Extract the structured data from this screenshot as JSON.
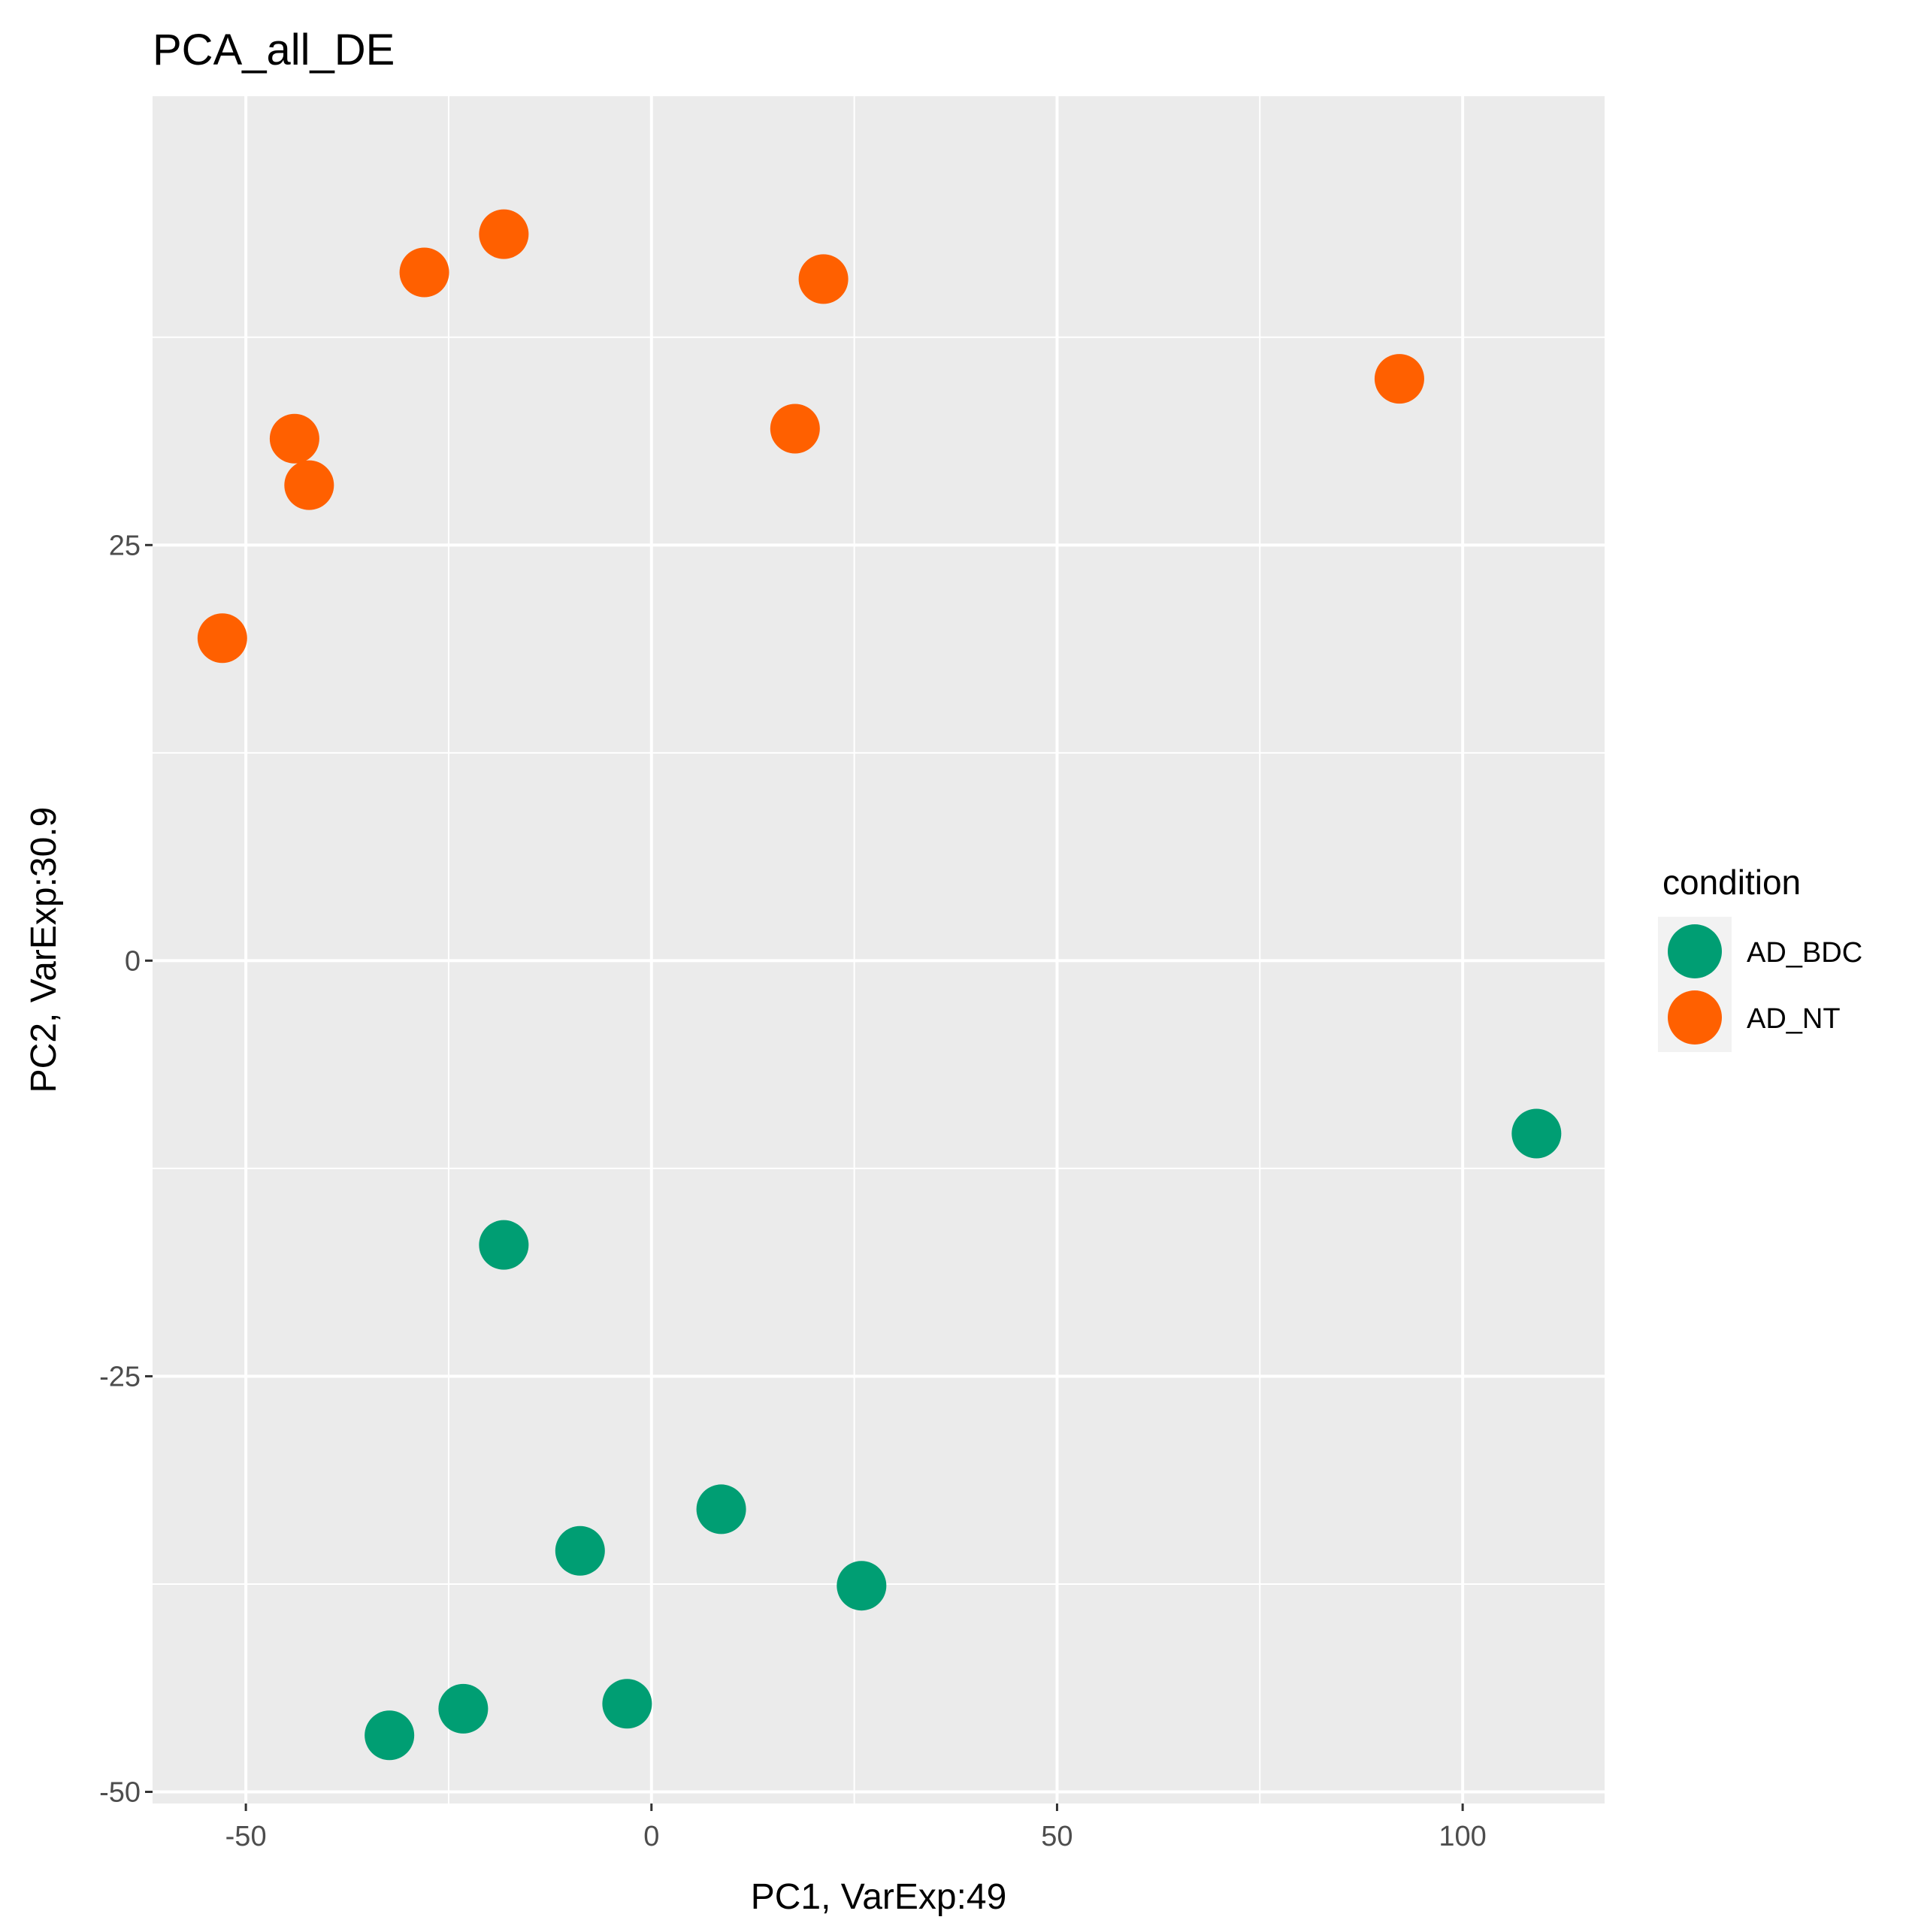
{
  "chart_data": {
    "type": "scatter",
    "title": "PCA_all_DE",
    "xlabel": "PC1, VarExp:49",
    "ylabel": "PC2, VarExp:30.9",
    "xlim": [
      -61.5,
      117.5
    ],
    "ylim": [
      -50.7,
      52.0
    ],
    "x_ticks": [
      -50,
      0,
      50,
      100
    ],
    "x_tick_labels": [
      "-50",
      "0",
      "50",
      "100"
    ],
    "y_ticks": [
      -50,
      -25,
      0,
      25
    ],
    "y_tick_labels": [
      "-50",
      "-25",
      "0",
      "25"
    ],
    "grid": true,
    "legend": {
      "title": "condition",
      "position": "right"
    },
    "series": [
      {
        "name": "AD_BDC",
        "color": "#009E73",
        "points": [
          {
            "x": 109.1,
            "y": -10.4
          },
          {
            "x": -18.2,
            "y": -17.1
          },
          {
            "x": 8.6,
            "y": -33.0
          },
          {
            "x": -8.8,
            "y": -35.5
          },
          {
            "x": 25.9,
            "y": -37.6
          },
          {
            "x": -23.2,
            "y": -45.0
          },
          {
            "x": -3.0,
            "y": -44.7
          },
          {
            "x": -32.3,
            "y": -46.6
          }
        ]
      },
      {
        "name": "AD_NT",
        "color": "#FF6000",
        "points": [
          {
            "x": -18.2,
            "y": 43.7
          },
          {
            "x": -28.0,
            "y": 41.4
          },
          {
            "x": 21.2,
            "y": 41.0
          },
          {
            "x": 92.2,
            "y": 35.0
          },
          {
            "x": 17.7,
            "y": 32.0
          },
          {
            "x": -44.0,
            "y": 31.4
          },
          {
            "x": -42.2,
            "y": 28.6
          },
          {
            "x": -52.9,
            "y": 19.4
          }
        ]
      }
    ]
  }
}
